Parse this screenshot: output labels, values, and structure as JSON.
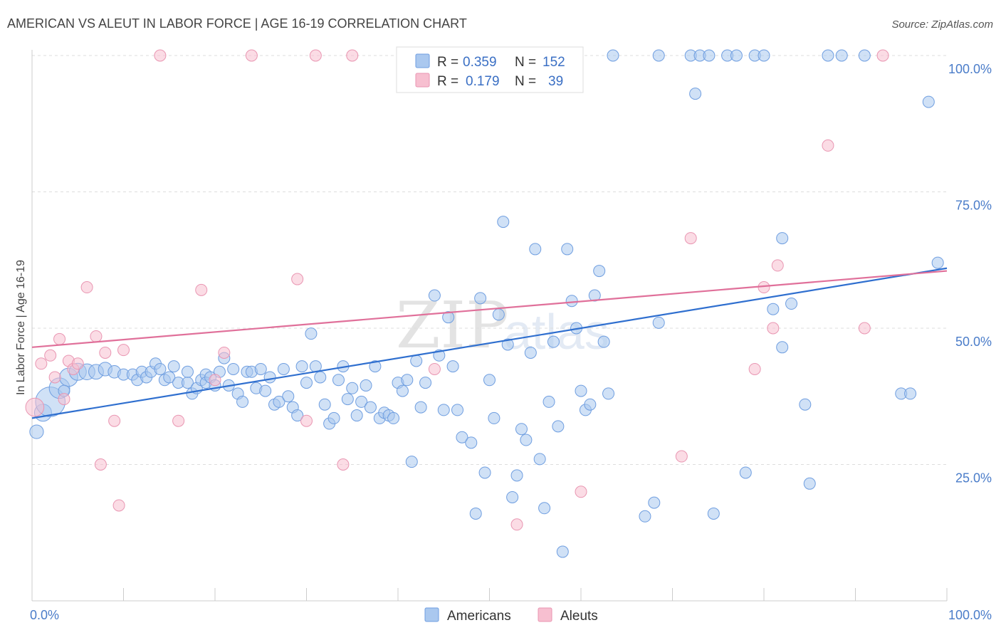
{
  "title": "AMERICAN VS ALEUT IN LABOR FORCE | AGE 16-19 CORRELATION CHART",
  "source": "Source: ZipAtlas.com",
  "watermark": {
    "zip": "ZIP",
    "atlas": "atlas"
  },
  "legend": {
    "r_label": "R =",
    "n_label": "N =",
    "rows": [
      {
        "r": "0.359",
        "n": "152"
      },
      {
        "r": "0.179",
        "n": "39"
      }
    ]
  },
  "colors": {
    "americans_fill": "#aac8ef",
    "americans_stroke": "#6f9ee0",
    "americans_line": "#2f6fcf",
    "aleuts_fill": "#f7bfd0",
    "aleuts_stroke": "#e996b2",
    "aleuts_line": "#e0709a",
    "grid": "#dddddd",
    "axis": "#cccccc",
    "tick_text": "#4a7cc9"
  },
  "chart_data": {
    "type": "scatter",
    "title": "AMERICAN VS ALEUT IN LABOR FORCE | AGE 16-19 CORRELATION CHART",
    "xlabel": "",
    "ylabel": "In Labor Force | Age 16-19",
    "xlim": [
      0,
      100
    ],
    "ylim": [
      0,
      105
    ],
    "x_tick_labels": [
      "0.0%",
      "100.0%"
    ],
    "y_ticks": [
      25,
      50,
      75,
      100
    ],
    "y_tick_labels": [
      "25.0%",
      "50.0%",
      "75.0%",
      "100.0%"
    ],
    "grid": true,
    "legend_placement": "top-center",
    "series": [
      {
        "name": "Americans",
        "trend": {
          "x": [
            0,
            100
          ],
          "y": [
            33.5,
            61
          ]
        },
        "points": [
          {
            "x": 0.5,
            "y": 31,
            "s": 1.2
          },
          {
            "x": 1.2,
            "y": 34.5,
            "s": 1.5
          },
          {
            "x": 2,
            "y": 36.5,
            "s": 2.6
          },
          {
            "x": 3,
            "y": 39,
            "s": 1.8
          },
          {
            "x": 4,
            "y": 41,
            "s": 1.6
          },
          {
            "x": 5,
            "y": 42,
            "s": 1.5
          },
          {
            "x": 6,
            "y": 42,
            "s": 1.4
          },
          {
            "x": 7,
            "y": 42,
            "s": 1.3
          },
          {
            "x": 8,
            "y": 42.5,
            "s": 1.2
          },
          {
            "x": 9,
            "y": 42,
            "s": 1.1
          },
          {
            "x": 10,
            "y": 41.5,
            "s": 1
          },
          {
            "x": 11,
            "y": 41.5,
            "s": 1
          },
          {
            "x": 11.5,
            "y": 40.5,
            "s": 1
          },
          {
            "x": 12,
            "y": 42,
            "s": 1
          },
          {
            "x": 12.5,
            "y": 41,
            "s": 1
          },
          {
            "x": 13,
            "y": 42,
            "s": 1
          },
          {
            "x": 13.5,
            "y": 43.5,
            "s": 1
          },
          {
            "x": 14,
            "y": 42.5,
            "s": 1
          },
          {
            "x": 14.5,
            "y": 40.5,
            "s": 1
          },
          {
            "x": 15,
            "y": 41,
            "s": 1
          },
          {
            "x": 15.5,
            "y": 43,
            "s": 1
          },
          {
            "x": 16,
            "y": 40,
            "s": 1
          },
          {
            "x": 17,
            "y": 40,
            "s": 1
          },
          {
            "x": 17,
            "y": 42,
            "s": 1
          },
          {
            "x": 17.5,
            "y": 38,
            "s": 1
          },
          {
            "x": 18,
            "y": 39,
            "s": 1
          },
          {
            "x": 18.5,
            "y": 40.5,
            "s": 1
          },
          {
            "x": 19,
            "y": 41.5,
            "s": 1
          },
          {
            "x": 19,
            "y": 40,
            "s": 1
          },
          {
            "x": 19.5,
            "y": 41,
            "s": 1
          },
          {
            "x": 20,
            "y": 39.5,
            "s": 1
          },
          {
            "x": 20.5,
            "y": 42,
            "s": 1
          },
          {
            "x": 21,
            "y": 44.5,
            "s": 1
          },
          {
            "x": 21.5,
            "y": 39.5,
            "s": 1
          },
          {
            "x": 22,
            "y": 42.5,
            "s": 1
          },
          {
            "x": 22.5,
            "y": 38,
            "s": 1
          },
          {
            "x": 23,
            "y": 36.5,
            "s": 1
          },
          {
            "x": 23.5,
            "y": 42,
            "s": 1
          },
          {
            "x": 24,
            "y": 42,
            "s": 1
          },
          {
            "x": 24.5,
            "y": 39,
            "s": 1
          },
          {
            "x": 25,
            "y": 42.5,
            "s": 1
          },
          {
            "x": 25.5,
            "y": 38.5,
            "s": 1
          },
          {
            "x": 26,
            "y": 41,
            "s": 1
          },
          {
            "x": 26.5,
            "y": 36,
            "s": 1
          },
          {
            "x": 27,
            "y": 36.5,
            "s": 1
          },
          {
            "x": 27.5,
            "y": 42.5,
            "s": 1
          },
          {
            "x": 28,
            "y": 37.5,
            "s": 1
          },
          {
            "x": 28.5,
            "y": 35.5,
            "s": 1
          },
          {
            "x": 29,
            "y": 34,
            "s": 1
          },
          {
            "x": 29.5,
            "y": 43,
            "s": 1
          },
          {
            "x": 30,
            "y": 40,
            "s": 1
          },
          {
            "x": 30.5,
            "y": 49,
            "s": 1
          },
          {
            "x": 31,
            "y": 43,
            "s": 1
          },
          {
            "x": 31.5,
            "y": 41,
            "s": 1
          },
          {
            "x": 32,
            "y": 36,
            "s": 1
          },
          {
            "x": 32.5,
            "y": 32.5,
            "s": 1
          },
          {
            "x": 33,
            "y": 33.5,
            "s": 1
          },
          {
            "x": 33.5,
            "y": 40.5,
            "s": 1
          },
          {
            "x": 34,
            "y": 43,
            "s": 1
          },
          {
            "x": 34.5,
            "y": 37,
            "s": 1
          },
          {
            "x": 35,
            "y": 39,
            "s": 1
          },
          {
            "x": 35.5,
            "y": 34,
            "s": 1
          },
          {
            "x": 36,
            "y": 36.5,
            "s": 1
          },
          {
            "x": 36.5,
            "y": 39.5,
            "s": 1
          },
          {
            "x": 37,
            "y": 35.5,
            "s": 1
          },
          {
            "x": 37.5,
            "y": 43,
            "s": 1
          },
          {
            "x": 38,
            "y": 33.5,
            "s": 1
          },
          {
            "x": 38.5,
            "y": 34.5,
            "s": 1
          },
          {
            "x": 39,
            "y": 34,
            "s": 1
          },
          {
            "x": 39.5,
            "y": 33.5,
            "s": 1
          },
          {
            "x": 40,
            "y": 40,
            "s": 1
          },
          {
            "x": 40.5,
            "y": 38.5,
            "s": 1
          },
          {
            "x": 41,
            "y": 40.5,
            "s": 1
          },
          {
            "x": 41.5,
            "y": 25.5,
            "s": 1
          },
          {
            "x": 42,
            "y": 44,
            "s": 1
          },
          {
            "x": 42.5,
            "y": 35.5,
            "s": 1
          },
          {
            "x": 43,
            "y": 40,
            "s": 1
          },
          {
            "x": 44,
            "y": 56,
            "s": 1
          },
          {
            "x": 44.5,
            "y": 45,
            "s": 1
          },
          {
            "x": 45,
            "y": 35,
            "s": 1
          },
          {
            "x": 45.5,
            "y": 52,
            "s": 1
          },
          {
            "x": 46,
            "y": 43,
            "s": 1
          },
          {
            "x": 46.5,
            "y": 35,
            "s": 1
          },
          {
            "x": 47,
            "y": 30,
            "s": 1
          },
          {
            "x": 48,
            "y": 29,
            "s": 1
          },
          {
            "x": 48.5,
            "y": 16,
            "s": 1
          },
          {
            "x": 49,
            "y": 55.5,
            "s": 1
          },
          {
            "x": 49.5,
            "y": 23.5,
            "s": 1
          },
          {
            "x": 50,
            "y": 40.5,
            "s": 1
          },
          {
            "x": 50.5,
            "y": 33.5,
            "s": 1
          },
          {
            "x": 51,
            "y": 52.5,
            "s": 1
          },
          {
            "x": 52,
            "y": 47,
            "s": 1
          },
          {
            "x": 52.5,
            "y": 19,
            "s": 1
          },
          {
            "x": 53,
            "y": 23,
            "s": 1
          },
          {
            "x": 53.5,
            "y": 31.5,
            "s": 1
          },
          {
            "x": 54,
            "y": 29.5,
            "s": 1
          },
          {
            "x": 54.5,
            "y": 45.5,
            "s": 1
          },
          {
            "x": 55,
            "y": 64.5,
            "s": 1
          },
          {
            "x": 55.5,
            "y": 26,
            "s": 1
          },
          {
            "x": 56,
            "y": 17,
            "s": 1
          },
          {
            "x": 56.5,
            "y": 36.5,
            "s": 1
          },
          {
            "x": 57,
            "y": 47.5,
            "s": 1
          },
          {
            "x": 57.5,
            "y": 32,
            "s": 1
          },
          {
            "x": 58,
            "y": 9,
            "s": 1
          },
          {
            "x": 59,
            "y": 55,
            "s": 1
          },
          {
            "x": 59.5,
            "y": 50,
            "s": 1
          },
          {
            "x": 60,
            "y": 38.5,
            "s": 1
          },
          {
            "x": 60.5,
            "y": 35,
            "s": 1
          },
          {
            "x": 61,
            "y": 36,
            "s": 1
          },
          {
            "x": 61.5,
            "y": 56,
            "s": 1
          },
          {
            "x": 62,
            "y": 60.5,
            "s": 1
          },
          {
            "x": 62.5,
            "y": 47.5,
            "s": 1
          },
          {
            "x": 63,
            "y": 38,
            "s": 1
          },
          {
            "x": 63.5,
            "y": 100,
            "s": 1
          },
          {
            "x": 67,
            "y": 15.5,
            "s": 1
          },
          {
            "x": 68,
            "y": 18,
            "s": 1
          },
          {
            "x": 68.5,
            "y": 51,
            "s": 1
          },
          {
            "x": 68.5,
            "y": 100,
            "s": 1
          },
          {
            "x": 72,
            "y": 100,
            "s": 1
          },
          {
            "x": 72.5,
            "y": 93,
            "s": 1
          },
          {
            "x": 73,
            "y": 100,
            "s": 1
          },
          {
            "x": 74,
            "y": 100,
            "s": 1
          },
          {
            "x": 74.5,
            "y": 16,
            "s": 1
          },
          {
            "x": 76,
            "y": 100,
            "s": 1
          },
          {
            "x": 77,
            "y": 100,
            "s": 1
          },
          {
            "x": 78,
            "y": 23.5,
            "s": 1
          },
          {
            "x": 79,
            "y": 100,
            "s": 1
          },
          {
            "x": 80,
            "y": 100,
            "s": 1
          },
          {
            "x": 81,
            "y": 53.5,
            "s": 1
          },
          {
            "x": 82,
            "y": 46.5,
            "s": 1
          },
          {
            "x": 83,
            "y": 54.5,
            "s": 1
          },
          {
            "x": 84.5,
            "y": 36,
            "s": 1
          },
          {
            "x": 85,
            "y": 21.5,
            "s": 1
          },
          {
            "x": 87,
            "y": 100,
            "s": 1
          },
          {
            "x": 88.5,
            "y": 100,
            "s": 1
          },
          {
            "x": 91,
            "y": 100,
            "s": 1
          },
          {
            "x": 95,
            "y": 38,
            "s": 1
          },
          {
            "x": 96,
            "y": 38,
            "s": 1
          },
          {
            "x": 98,
            "y": 91.5,
            "s": 1
          },
          {
            "x": 99,
            "y": 62,
            "s": 1
          },
          {
            "x": 82,
            "y": 66.5,
            "s": 1
          },
          {
            "x": 51.5,
            "y": 69.5,
            "s": 1
          },
          {
            "x": 58.5,
            "y": 64.5,
            "s": 1
          },
          {
            "x": 3.5,
            "y": 38.5,
            "s": 1
          }
        ]
      },
      {
        "name": "Aleuts",
        "trend": {
          "x": [
            0,
            100
          ],
          "y": [
            46.5,
            60.5
          ]
        },
        "points": [
          {
            "x": 0.3,
            "y": 35.5,
            "s": 1.6
          },
          {
            "x": 1,
            "y": 43.5,
            "s": 1
          },
          {
            "x": 2,
            "y": 45,
            "s": 1
          },
          {
            "x": 2.5,
            "y": 41,
            "s": 1
          },
          {
            "x": 3,
            "y": 48,
            "s": 1
          },
          {
            "x": 3.5,
            "y": 37,
            "s": 1
          },
          {
            "x": 4,
            "y": 44,
            "s": 1
          },
          {
            "x": 4.5,
            "y": 42.5,
            "s": 1
          },
          {
            "x": 5,
            "y": 43.5,
            "s": 1
          },
          {
            "x": 6,
            "y": 57.5,
            "s": 1
          },
          {
            "x": 7,
            "y": 48.5,
            "s": 1
          },
          {
            "x": 7.5,
            "y": 25,
            "s": 1
          },
          {
            "x": 8,
            "y": 45.5,
            "s": 1
          },
          {
            "x": 9,
            "y": 33,
            "s": 1
          },
          {
            "x": 9.5,
            "y": 17.5,
            "s": 1
          },
          {
            "x": 10,
            "y": 46,
            "s": 1
          },
          {
            "x": 14,
            "y": 100,
            "s": 1
          },
          {
            "x": 16,
            "y": 33,
            "s": 1
          },
          {
            "x": 18.5,
            "y": 57,
            "s": 1
          },
          {
            "x": 20,
            "y": 40.5,
            "s": 1
          },
          {
            "x": 21,
            "y": 45.5,
            "s": 1
          },
          {
            "x": 24,
            "y": 100,
            "s": 1
          },
          {
            "x": 29,
            "y": 59,
            "s": 1
          },
          {
            "x": 31,
            "y": 100,
            "s": 1
          },
          {
            "x": 34,
            "y": 25,
            "s": 1
          },
          {
            "x": 35,
            "y": 100,
            "s": 1
          },
          {
            "x": 44,
            "y": 42.5,
            "s": 1
          },
          {
            "x": 53,
            "y": 14,
            "s": 1
          },
          {
            "x": 60,
            "y": 20,
            "s": 1
          },
          {
            "x": 71,
            "y": 26.5,
            "s": 1
          },
          {
            "x": 72,
            "y": 66.5,
            "s": 1
          },
          {
            "x": 79,
            "y": 42.5,
            "s": 1
          },
          {
            "x": 80,
            "y": 57.5,
            "s": 1
          },
          {
            "x": 81,
            "y": 50,
            "s": 1
          },
          {
            "x": 81.5,
            "y": 61.5,
            "s": 1
          },
          {
            "x": 87,
            "y": 83.5,
            "s": 1
          },
          {
            "x": 91,
            "y": 50,
            "s": 1
          },
          {
            "x": 93,
            "y": 100,
            "s": 1
          },
          {
            "x": 30,
            "y": 33,
            "s": 1
          }
        ]
      }
    ]
  }
}
